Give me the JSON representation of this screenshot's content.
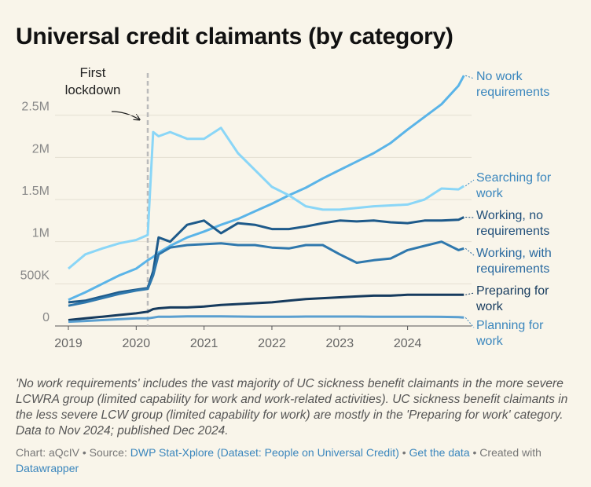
{
  "chart_data": {
    "type": "line",
    "title": "Universal credit claimants (by category)",
    "x": [
      2019,
      2019.25,
      2019.5,
      2019.75,
      2020,
      2020.17,
      2020.25,
      2020.33,
      2020.5,
      2020.75,
      2021,
      2021.25,
      2021.5,
      2021.75,
      2022,
      2022.25,
      2022.5,
      2022.75,
      2023,
      2023.25,
      2023.5,
      2023.75,
      2024,
      2024.25,
      2024.5,
      2024.75,
      2024.83
    ],
    "xlim": [
      2019,
      2024.85
    ],
    "xticks": [
      2019,
      2020,
      2021,
      2022,
      2023,
      2024
    ],
    "ylim": [
      0,
      3000000
    ],
    "yticks": [
      0,
      {
        "value": 500000,
        "label": "500K"
      },
      {
        "value": 1000000,
        "label": "1M"
      },
      {
        "value": 1500000,
        "label": "1.5M"
      },
      {
        "value": 2000000,
        "label": "2M"
      },
      {
        "value": 2500000,
        "label": "2.5M"
      }
    ],
    "grid": true,
    "series": [
      {
        "name": "No work requirements",
        "color": "#5ab4e8",
        "label_color": "#3a86bd",
        "values": [
          310000,
          400000,
          500000,
          600000,
          680000,
          780000,
          820000,
          870000,
          950000,
          1050000,
          1120000,
          1200000,
          1270000,
          1360000,
          1450000,
          1550000,
          1640000,
          1750000,
          1850000,
          1950000,
          2050000,
          2170000,
          2330000,
          2480000,
          2630000,
          2850000,
          2970000
        ]
      },
      {
        "name": "Searching for work",
        "color": "#8ad6f7",
        "label_color": "#3a86bd",
        "values": [
          680000,
          850000,
          920000,
          980000,
          1020000,
          1080000,
          2300000,
          2250000,
          2300000,
          2220000,
          2220000,
          2350000,
          2050000,
          1850000,
          1650000,
          1550000,
          1420000,
          1380000,
          1380000,
          1400000,
          1420000,
          1430000,
          1440000,
          1500000,
          1630000,
          1620000,
          1660000
        ]
      },
      {
        "name": "Working, no requirements",
        "color": "#1e5a8a",
        "label_color": "#1f4e79",
        "values": [
          280000,
          300000,
          350000,
          400000,
          430000,
          450000,
          650000,
          1050000,
          1000000,
          1200000,
          1250000,
          1100000,
          1220000,
          1200000,
          1150000,
          1150000,
          1180000,
          1220000,
          1250000,
          1240000,
          1250000,
          1230000,
          1220000,
          1250000,
          1250000,
          1260000,
          1290000
        ]
      },
      {
        "name": "Working, with requirements",
        "color": "#2f78ad",
        "label_color": "#2a6aa0",
        "values": [
          240000,
          280000,
          330000,
          380000,
          420000,
          440000,
          600000,
          850000,
          930000,
          960000,
          970000,
          980000,
          960000,
          960000,
          930000,
          920000,
          960000,
          960000,
          850000,
          750000,
          780000,
          800000,
          900000,
          950000,
          1000000,
          900000,
          920000
        ]
      },
      {
        "name": "Preparing for work",
        "color": "#163b5e",
        "label_color": "#163b5e",
        "values": [
          70000,
          90000,
          110000,
          130000,
          150000,
          170000,
          200000,
          210000,
          220000,
          220000,
          230000,
          250000,
          260000,
          270000,
          280000,
          300000,
          320000,
          330000,
          340000,
          350000,
          360000,
          360000,
          370000,
          370000,
          370000,
          370000,
          370000
        ]
      },
      {
        "name": "Planning for work",
        "color": "#5a9fd0",
        "label_color": "#3a86bd",
        "values": [
          50000,
          60000,
          70000,
          80000,
          90000,
          90000,
          100000,
          110000,
          110000,
          115000,
          115000,
          115000,
          112000,
          110000,
          110000,
          110000,
          112000,
          112000,
          112000,
          112000,
          110000,
          110000,
          110000,
          110000,
          108000,
          105000,
          100000
        ]
      }
    ],
    "annotation": {
      "label": "First lockdown",
      "x": 2020.17
    },
    "note": "'No work requirements' includes the vast majority of UC sickness benefit claimants in the more severe LCWRA group (limited capability for work and work-related activities). UC sickness benefit claimants in the less severe LCW group (limited capability for work) are mostly in the 'Preparing for work' category. Data to Nov 2024; published Dec 2024.",
    "footer": {
      "chart": "Chart: aQcIV",
      "separator": "•",
      "source_label": "Source:",
      "source": "DWP Stat-Xplore (Dataset: People on Universal Credit)",
      "get_data": "Get the data",
      "created_label": "Created with",
      "created": "Datawrapper"
    }
  }
}
